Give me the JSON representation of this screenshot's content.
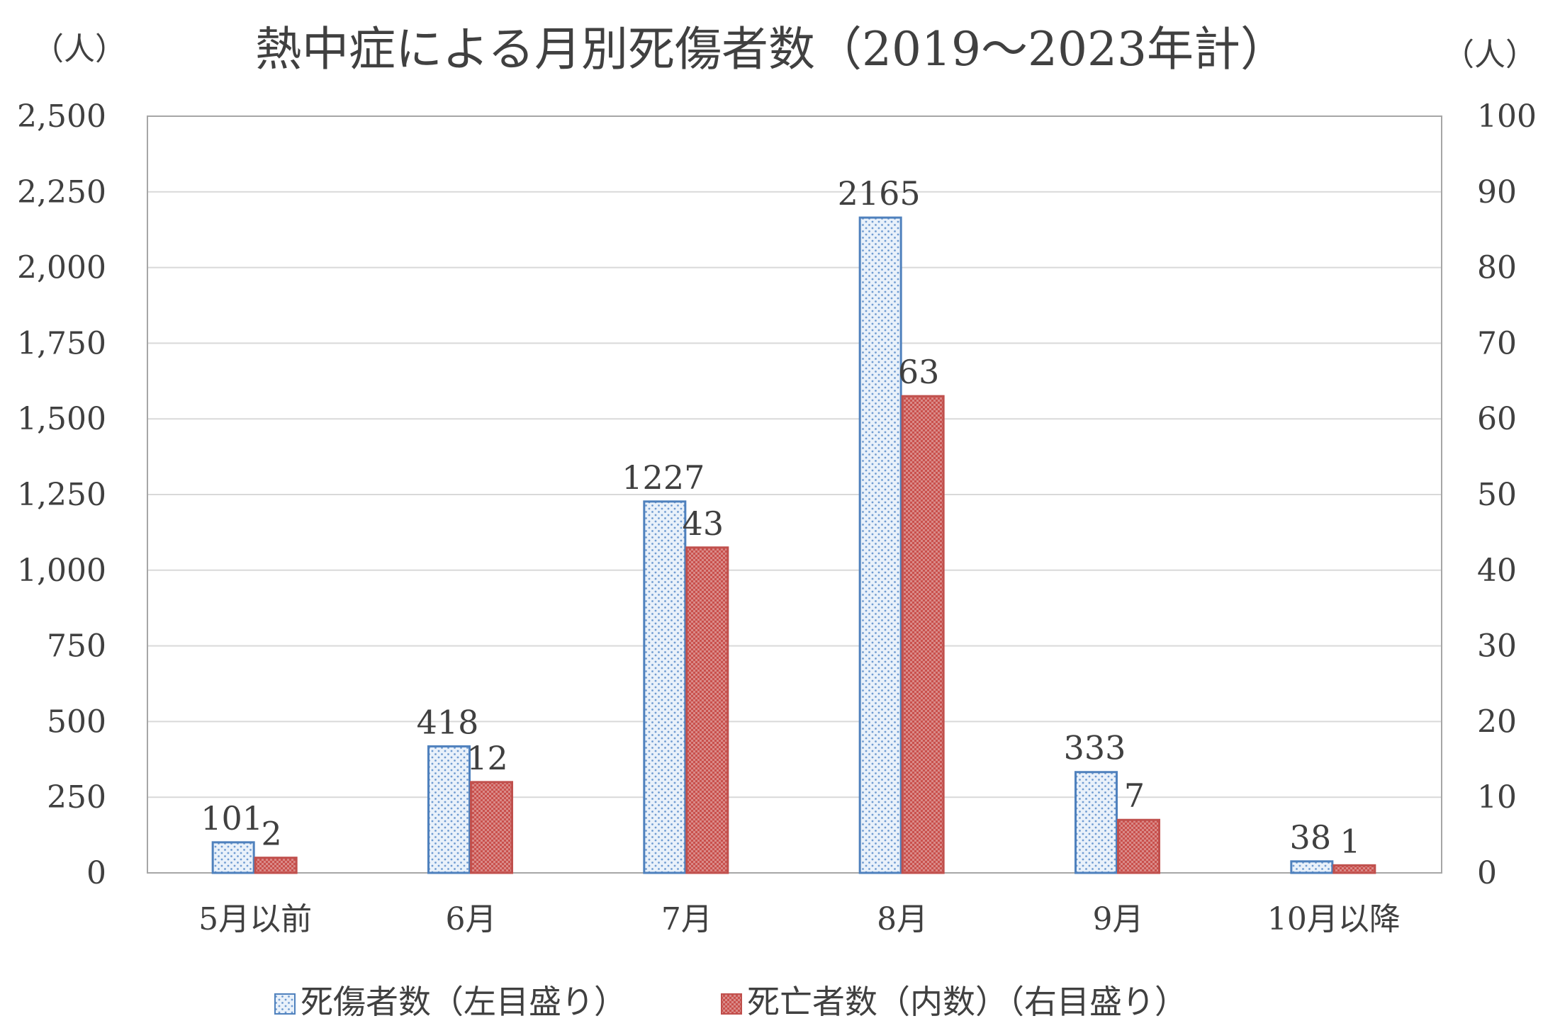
{
  "chart_data": {
    "type": "bar",
    "title": "熱中症による月別死傷者数（2019～2023年計）",
    "left_unit": "（人）",
    "right_unit": "（人）",
    "categories": [
      "5月以前",
      "6月",
      "7月",
      "8月",
      "9月",
      "10月以降"
    ],
    "series": [
      {
        "name": "死傷者数（左目盛り）",
        "axis": "left",
        "color": "#4f81bd",
        "pattern": "dotted",
        "values": [
          101,
          418,
          1227,
          2165,
          333,
          38
        ]
      },
      {
        "name": "死亡者数（内数）（右目盛り）",
        "axis": "right",
        "color": "#c0504d",
        "pattern": "hatched",
        "values": [
          2,
          12,
          43,
          63,
          7,
          1
        ]
      }
    ],
    "left_axis": {
      "ylim": [
        0,
        2500
      ],
      "ticks": [
        0,
        250,
        500,
        750,
        1000,
        1250,
        1500,
        1750,
        2000,
        2250,
        2500
      ],
      "tick_labels": [
        "0",
        "250",
        "500",
        "750",
        "1,000",
        "1,250",
        "1,500",
        "1,750",
        "2,000",
        "2,250",
        "2,500"
      ]
    },
    "right_axis": {
      "ylim": [
        0,
        100
      ],
      "ticks": [
        0,
        10,
        20,
        30,
        40,
        50,
        60,
        70,
        80,
        90,
        100
      ],
      "tick_labels": [
        "0",
        "10",
        "20",
        "30",
        "40",
        "50",
        "60",
        "70",
        "80",
        "90",
        "100"
      ]
    },
    "grid": true,
    "legend_position": "bottom"
  }
}
